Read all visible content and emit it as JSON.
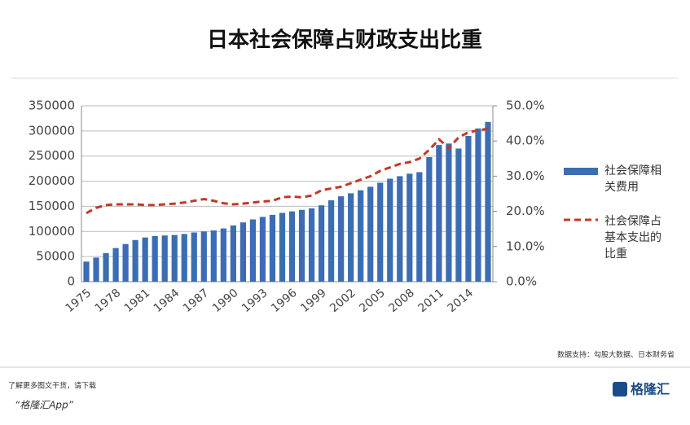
{
  "chart_data": {
    "type": "bar-line",
    "title": "日本社会保障占财政支出比重",
    "categories": [
      "1975",
      null,
      null,
      "1978",
      null,
      null,
      "1981",
      null,
      null,
      "1984",
      null,
      null,
      "1987",
      null,
      null,
      "1990",
      null,
      null,
      "1993",
      null,
      null,
      "1996",
      null,
      null,
      "1999",
      null,
      null,
      "2002",
      null,
      null,
      "2005",
      null,
      null,
      "2008",
      null,
      null,
      "2011",
      null,
      null,
      "2014",
      null,
      null
    ],
    "series": [
      {
        "name": "社会保障相关费用",
        "color": "#3c6db4",
        "type": "bar",
        "values": [
          40000,
          48000,
          57000,
          67000,
          75000,
          83000,
          88000,
          91000,
          92000,
          93000,
          95000,
          98000,
          100000,
          102000,
          106000,
          112000,
          118000,
          124000,
          129000,
          133000,
          137000,
          140000,
          143000,
          146000,
          152000,
          162000,
          170000,
          176000,
          182000,
          189000,
          197000,
          205000,
          210000,
          215000,
          218000,
          248000,
          272000,
          275000,
          265000,
          290000,
          305000,
          318000
        ]
      },
      {
        "name": "社会保障占基本支出的比重",
        "color": "#c0392b",
        "type": "line",
        "axis": "y2",
        "values": [
          19.5,
          21,
          21.8,
          22,
          22,
          22,
          21.8,
          21.8,
          22,
          22.2,
          22.5,
          23,
          23.5,
          23,
          22.3,
          22,
          22.2,
          22.5,
          22.8,
          23,
          24,
          24.2,
          24,
          24.5,
          26,
          26.5,
          27,
          28,
          29,
          30,
          31.5,
          32.5,
          33.5,
          34,
          35,
          37.5,
          40.5,
          38,
          41,
          42.5,
          43,
          43.5
        ]
      }
    ],
    "ylim": [
      0,
      350000
    ],
    "yticks": [
      0,
      50000,
      100000,
      150000,
      200000,
      250000,
      300000,
      350000
    ],
    "y2lim": [
      0,
      50
    ],
    "y2ticks": [
      {
        "value": 0,
        "label": "0.0%"
      },
      {
        "value": 10,
        "label": "10.0%"
      },
      {
        "value": 20,
        "label": "20.0%"
      },
      {
        "value": 30,
        "label": "30.0%"
      },
      {
        "value": 40,
        "label": "40.0%"
      },
      {
        "value": 50,
        "label": "50.0%"
      }
    ],
    "grid": true,
    "legend": "right",
    "source": "数据支持：勾股大数据、日本财务省"
  },
  "footer": {
    "line1": "了解更多图文干货，请下载",
    "line2": "“格隆汇App”",
    "logo": "格隆汇"
  }
}
